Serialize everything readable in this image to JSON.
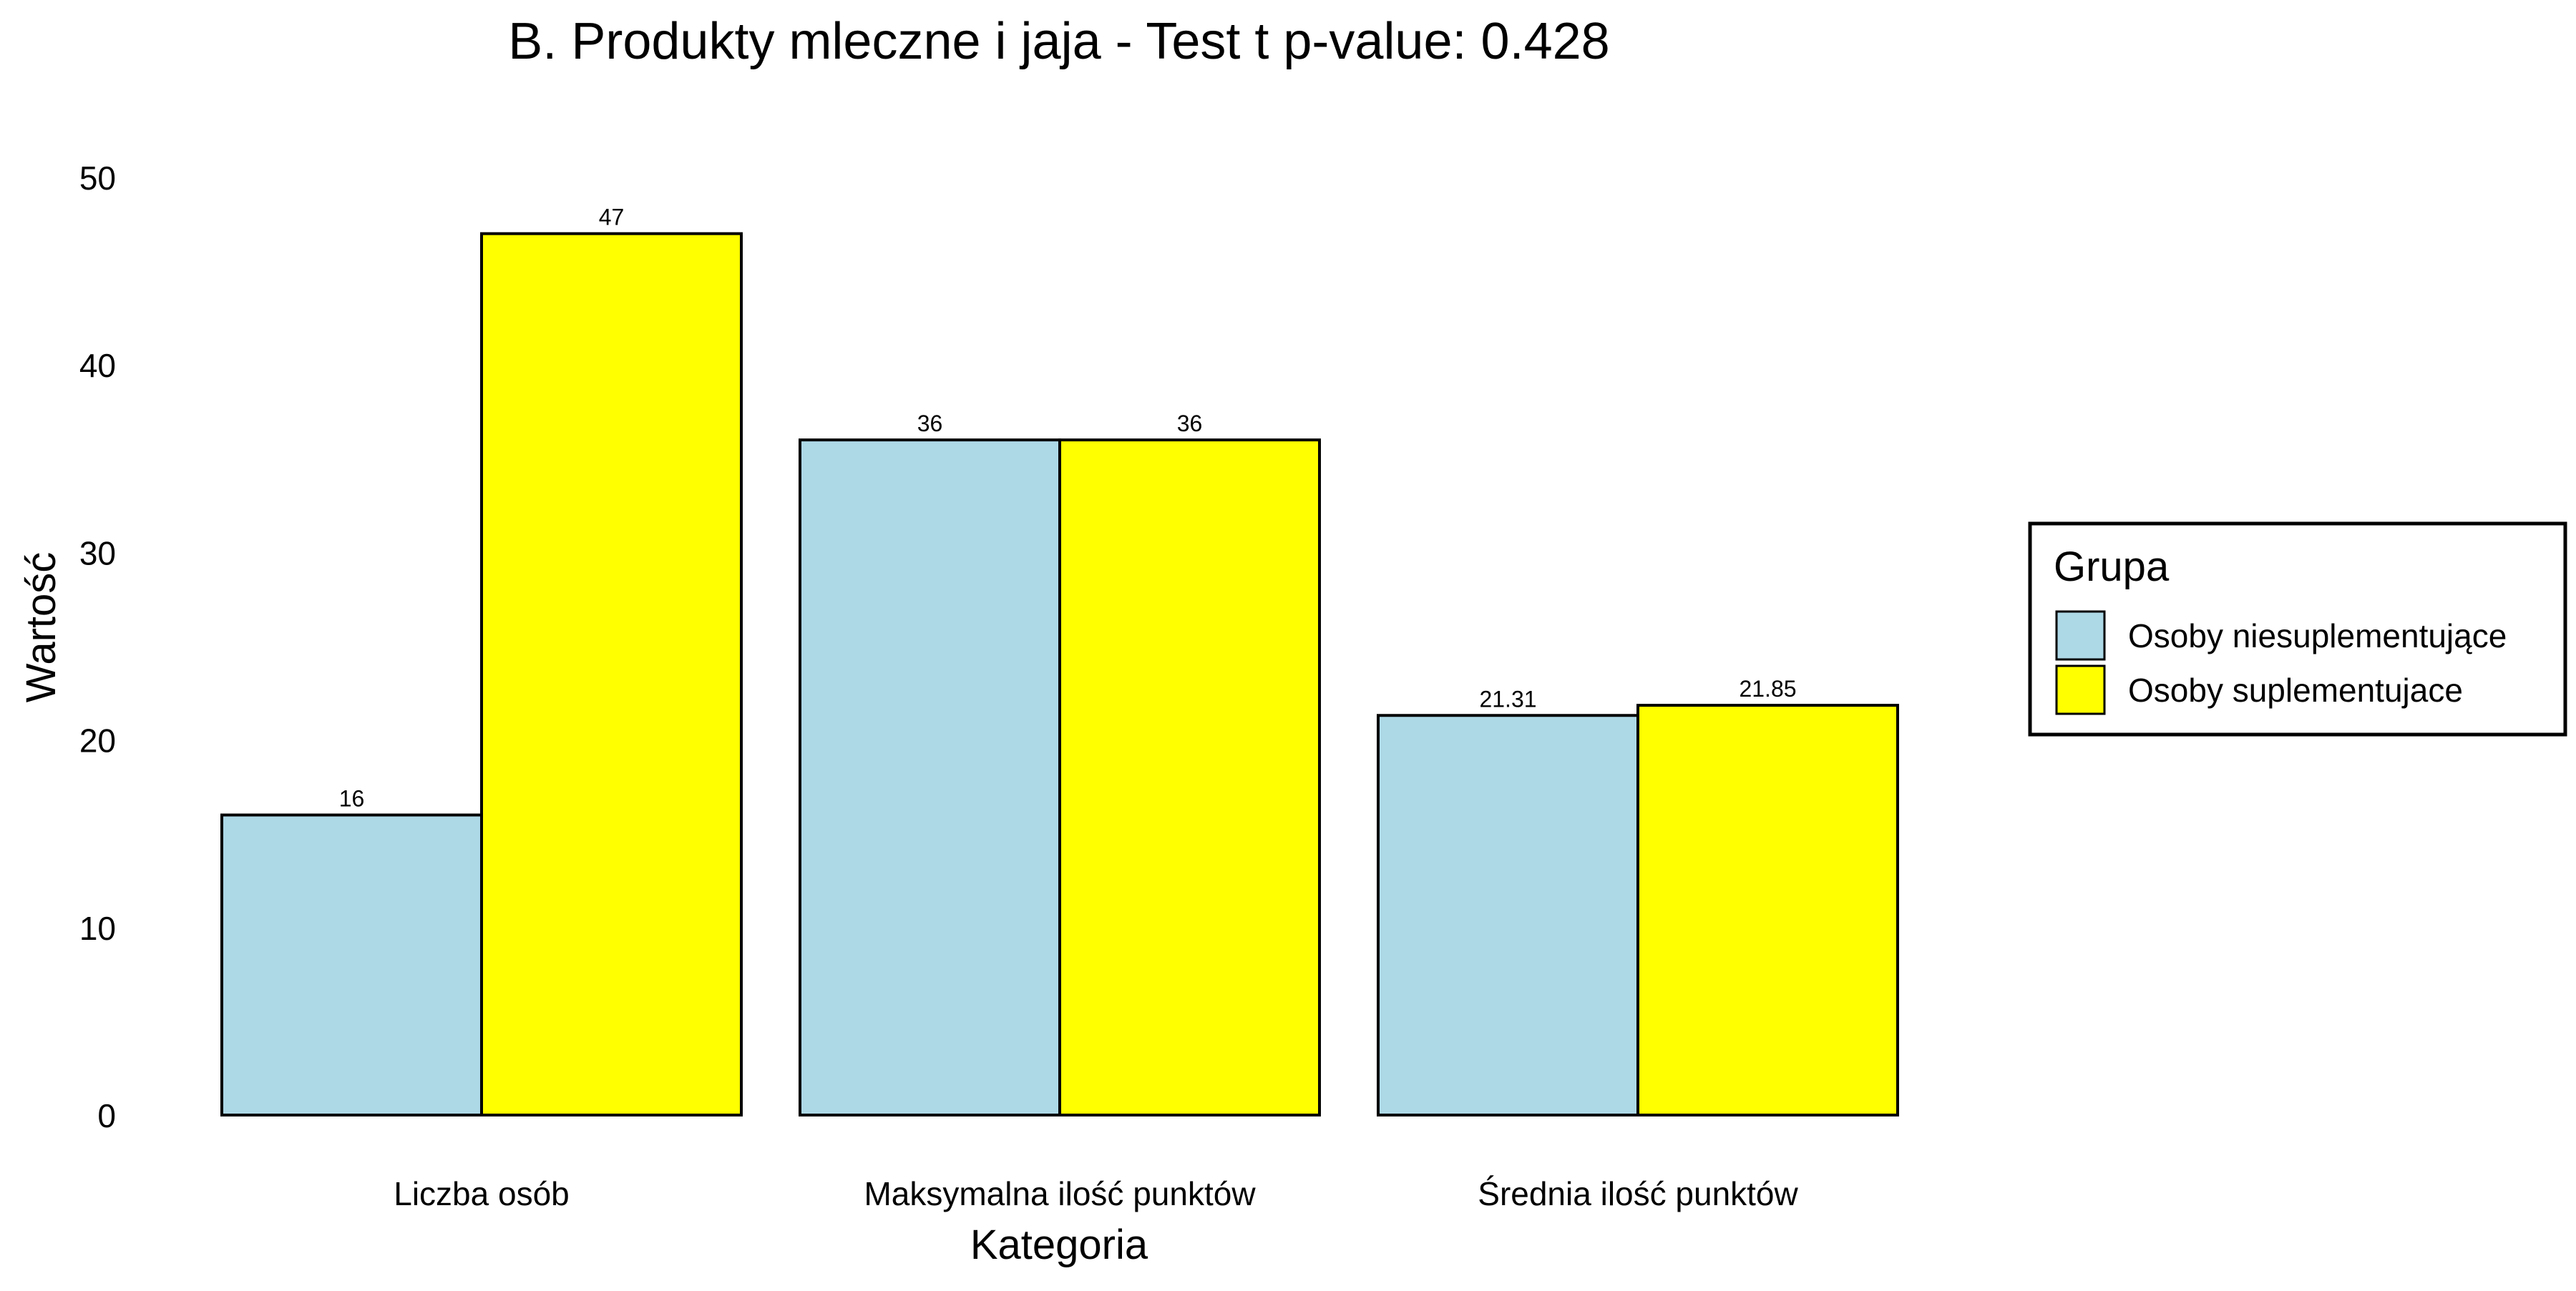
{
  "chart_data": {
    "type": "bar",
    "title": "B. Produkty mleczne i jaja - Test t p-value: 0.428",
    "xlabel": "Kategoria",
    "ylabel": "Wartość",
    "ylim": [
      0,
      50
    ],
    "yticks": [
      0,
      10,
      20,
      30,
      40,
      50
    ],
    "grid": false,
    "categories": [
      "Liczba osób",
      "Maksymalna ilość punktów",
      "Średnia ilość punktów"
    ],
    "series": [
      {
        "name": "Osoby niesuplementujące",
        "color": "#ADD8E6",
        "values": [
          16,
          36,
          21.31
        ],
        "labels": [
          "16",
          "36",
          "21.31"
        ]
      },
      {
        "name": "Osoby suplementujace",
        "color": "#FFFF00",
        "values": [
          47,
          36,
          21.85
        ],
        "labels": [
          "47",
          "36",
          "21.85"
        ]
      }
    ],
    "legend": {
      "title": "Grupa",
      "position": "right"
    }
  }
}
